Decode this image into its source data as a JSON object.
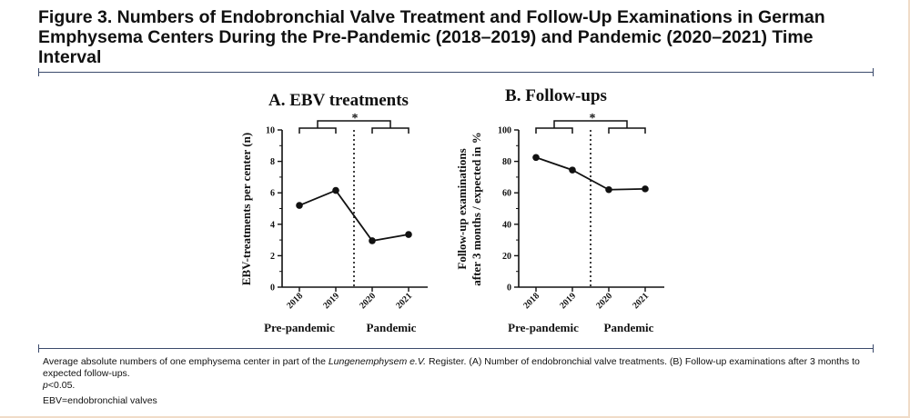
{
  "figure": {
    "title": "Figure 3. Numbers of Endobronchial Valve Treatment and Follow-Up Examinations in German Emphysema Centers During the Pre-Pandemic (2018–2019) and Pandemic (2020–2021) Time Interval",
    "caption_pre": "Average absolute numbers of one emphysema center in part of the ",
    "caption_italic": "Lungenemphysem e.V.",
    "caption_post": " Register. (A) Number of endobronchial valve treatments. (B) Follow-up examinations after 3 months to expected follow-ups.",
    "caption_p_italic": "p",
    "caption_p_rest": "<0.05.",
    "abbreviation": "EBV=endobronchial valves",
    "colors": {
      "rule": "#3b4a6b",
      "ink": "#111111",
      "frame": "#f0dcc8"
    }
  },
  "chart_data": [
    {
      "type": "line",
      "title": "A. EBV treatments",
      "xlabel": "",
      "ylabel": "EBV-treatments per center (n)",
      "categories": [
        "2018",
        "2019",
        "2020",
        "2021"
      ],
      "values": [
        5.2,
        6.15,
        2.95,
        3.35
      ],
      "ylim": [
        0,
        10
      ],
      "yticks": [
        "0",
        "2",
        "4",
        "6",
        "8",
        "10"
      ],
      "groups": [
        "Pre-pandemic",
        "Pandemic"
      ],
      "significance": "*",
      "grid": false,
      "divider": "dotted line between 2019 and 2020"
    },
    {
      "type": "line",
      "title": "B. Follow-ups",
      "xlabel": "",
      "ylabel_line1": "Follow-up examinations",
      "ylabel_line2": "after 3 months / expected in %",
      "categories": [
        "2018",
        "2019",
        "2020",
        "2021"
      ],
      "values": [
        82.5,
        74.5,
        62,
        62.5
      ],
      "ylim": [
        0,
        100
      ],
      "yticks": [
        "0",
        "20",
        "40",
        "60",
        "80",
        "100"
      ],
      "groups": [
        "Pre-pandemic",
        "Pandemic"
      ],
      "significance": "*",
      "grid": false,
      "divider": "dotted line between 2019 and 2020"
    }
  ]
}
